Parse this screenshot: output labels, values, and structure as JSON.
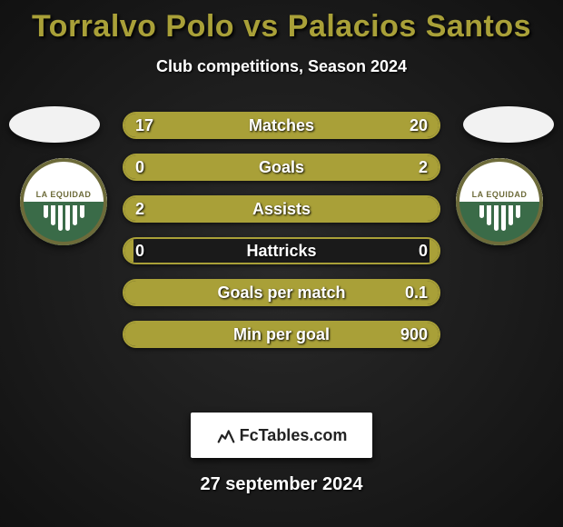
{
  "title": "Torralvo Polo vs Palacios Santos",
  "subtitle": "Club competitions, Season 2024",
  "date": "27 september 2024",
  "brand": "FcTables.com",
  "club_label": "LA EQUIDAD",
  "colors": {
    "accent": "#a9a038",
    "bar_border": "#a9a038",
    "bar_fill": "#a9a038",
    "background_dark": "#111111",
    "text": "#ffffff"
  },
  "rows": [
    {
      "label": "Matches",
      "left": "17",
      "right": "20",
      "left_pct": 46,
      "right_pct": 54
    },
    {
      "label": "Goals",
      "left": "0",
      "right": "2",
      "left_pct": 3,
      "right_pct": 97
    },
    {
      "label": "Assists",
      "left": "2",
      "right": "",
      "left_pct": 97,
      "right_pct": 3
    },
    {
      "label": "Hattricks",
      "left": "0",
      "right": "0",
      "left_pct": 3,
      "right_pct": 3
    },
    {
      "label": "Goals per match",
      "left": "",
      "right": "0.1",
      "left_pct": 3,
      "right_pct": 97
    },
    {
      "label": "Min per goal",
      "left": "",
      "right": "900",
      "left_pct": 3,
      "right_pct": 97
    }
  ]
}
